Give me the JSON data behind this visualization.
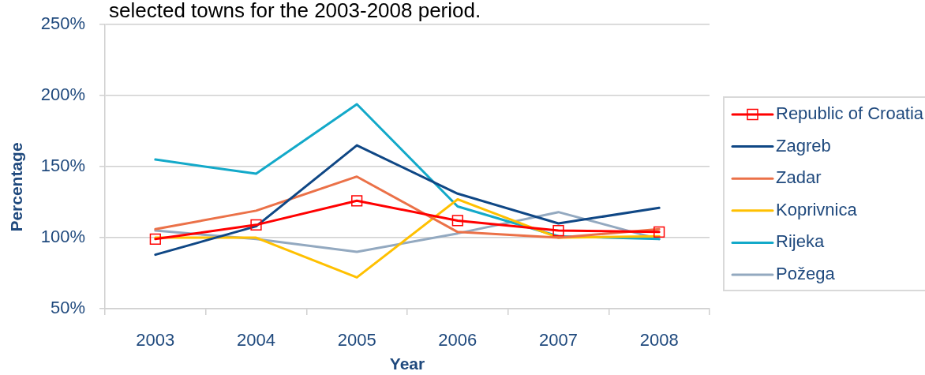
{
  "chart_data": {
    "type": "line",
    "title": "selected towns for the 2003-2008 period.",
    "xlabel": "Year",
    "ylabel": "Percentage",
    "categories": [
      "2003",
      "2004",
      "2005",
      "2006",
      "2007",
      "2008"
    ],
    "series": [
      {
        "name": "Republic of Croatia",
        "color": "#ff0000",
        "marker": "square",
        "values": [
          99,
          109,
          126,
          112,
          105,
          104
        ]
      },
      {
        "name": "Zagreb",
        "color": "#0f4785",
        "values": [
          88,
          108,
          165,
          131,
          110,
          121
        ]
      },
      {
        "name": "Zadar",
        "color": "#eb7148",
        "values": [
          106,
          119,
          143,
          104,
          100,
          106
        ]
      },
      {
        "name": "Koprivnica",
        "color": "#ffc000",
        "values": [
          100,
          100,
          72,
          127,
          100,
          101
        ]
      },
      {
        "name": "Rijeka",
        "color": "#13a9c9",
        "values": [
          155,
          145,
          194,
          122,
          101,
          99
        ]
      },
      {
        "name": "Požega",
        "color": "#93a9c0",
        "values": [
          105,
          99,
          90,
          103,
          118,
          99
        ]
      }
    ],
    "ylim": [
      50,
      250
    ],
    "yticks": [
      {
        "value": 50,
        "label": "50%"
      },
      {
        "value": 100,
        "label": "100%"
      },
      {
        "value": 150,
        "label": "150%"
      },
      {
        "value": 200,
        "label": "200%"
      },
      {
        "value": 250,
        "label": "250%"
      }
    ],
    "grid": "y",
    "legend": "right"
  }
}
